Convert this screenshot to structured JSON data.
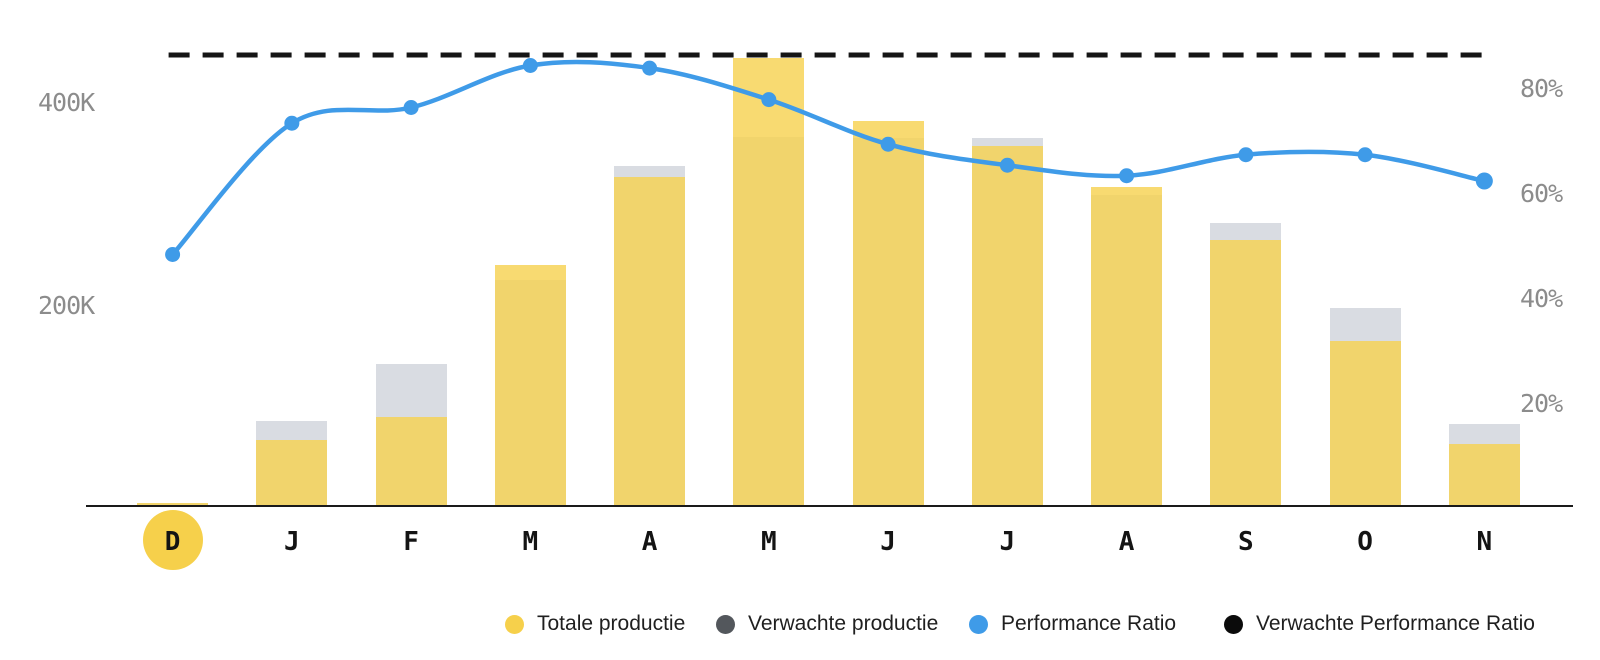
{
  "chart_data": {
    "type": "combo-bar-line",
    "title": "",
    "months": [
      "D",
      "J",
      "F",
      "M",
      "A",
      "M",
      "J",
      "J",
      "A",
      "S",
      "O",
      "N"
    ],
    "highlighted_month_index": 0,
    "series": [
      {
        "name": "Totale productie",
        "type": "bar",
        "color": "#F6D04B",
        "unit": "K",
        "values": [
          3,
          65,
          88,
          237,
          324,
          441,
          379,
          355,
          314,
          262,
          163,
          61
        ]
      },
      {
        "name": "Verwachte productie",
        "type": "bar",
        "color": "#D9DCE2",
        "unit": "K",
        "values": [
          3,
          84,
          140,
          223,
          335,
          364,
          363,
          363,
          306,
          279,
          195,
          81
        ]
      },
      {
        "name": "Performance Ratio",
        "type": "line",
        "color": "#3F9BE8",
        "unit": "%",
        "values": [
          48,
          73,
          76,
          84,
          83.5,
          77.5,
          69,
          65,
          63,
          67,
          67,
          62
        ]
      },
      {
        "name": "Verwachte Performance Ratio",
        "type": "dashed-line",
        "color": "#151515",
        "unit": "%",
        "value": 86
      }
    ],
    "y_left": {
      "tick_labels": [
        "400K",
        "200K"
      ],
      "ticks": [
        400,
        200
      ],
      "range": [
        0,
        500
      ]
    },
    "y_right": {
      "tick_labels": [
        "80%",
        "60%",
        "40%",
        "20%"
      ],
      "ticks": [
        80,
        60,
        40,
        20
      ],
      "range": [
        0,
        96
      ]
    },
    "grid": "off",
    "legend_position": "bottom",
    "legend": [
      {
        "label": "Totale productie",
        "color": "#F6D04B"
      },
      {
        "label": "Verwachte productie",
        "color": "#53575C"
      },
      {
        "label": "Performance Ratio",
        "color": "#3F9BE8"
      },
      {
        "label": "Verwachte Performance Ratio",
        "color": "#0B0B0B"
      }
    ]
  }
}
